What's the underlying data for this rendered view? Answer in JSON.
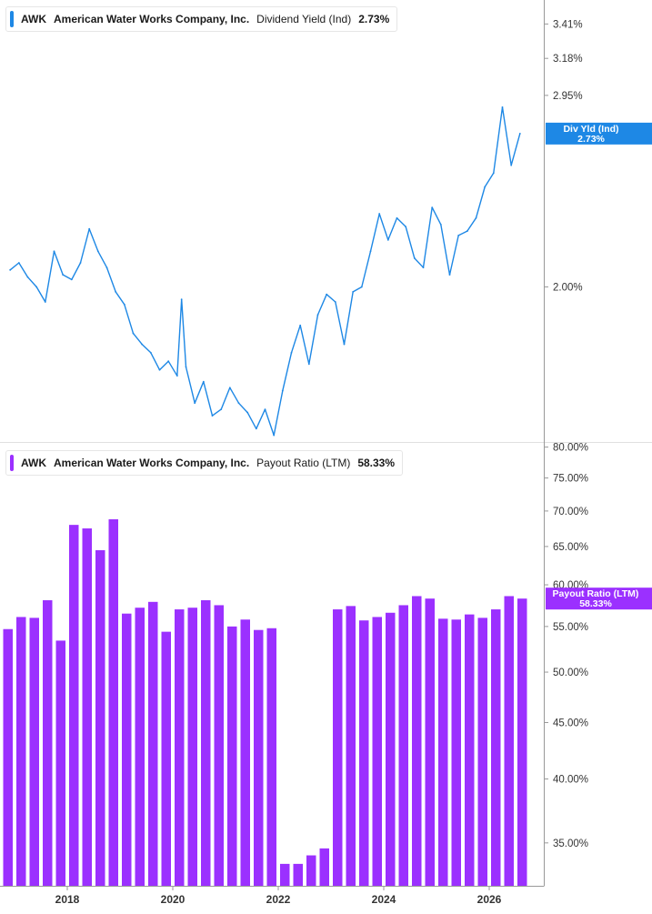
{
  "colors": {
    "yield_line": "#1e88e5",
    "payout_bar": "#9b30ff",
    "axis": "#999999"
  },
  "legend_top": {
    "ticker": "AWK",
    "company": "American Water Works Company, Inc.",
    "metric": "Dividend Yield (Ind)",
    "value": "2.73%"
  },
  "legend_bottom": {
    "ticker": "AWK",
    "company": "American Water Works Company, Inc.",
    "metric": "Payout Ratio (LTM)",
    "value": "58.33%"
  },
  "x_labels": [
    "2018",
    "2020",
    "2022",
    "2024",
    "2026"
  ],
  "chart_data": [
    {
      "type": "line",
      "scale": "log",
      "series": [
        {
          "name": "Div Yld (Ind)",
          "last_label": "2.73%",
          "x": [
            "2016-12",
            "2017-02",
            "2017-04",
            "2017-06",
            "2017-08",
            "2017-10",
            "2017-12",
            "2018-02",
            "2018-04",
            "2018-06",
            "2018-08",
            "2018-10",
            "2018-12",
            "2019-02",
            "2019-04",
            "2019-06",
            "2019-08",
            "2019-10",
            "2019-12",
            "2020-02",
            "2020-03",
            "2020-04",
            "2020-06",
            "2020-08",
            "2020-10",
            "2020-12",
            "2021-02",
            "2021-04",
            "2021-06",
            "2021-08",
            "2021-10",
            "2021-12",
            "2022-02",
            "2022-04",
            "2022-06",
            "2022-08",
            "2022-10",
            "2022-12",
            "2023-02",
            "2023-04",
            "2023-06",
            "2023-08",
            "2023-10",
            "2023-12",
            "2024-02",
            "2024-04",
            "2024-06",
            "2024-08",
            "2024-10",
            "2024-12",
            "2025-02",
            "2025-04",
            "2025-06",
            "2025-08",
            "2025-10",
            "2025-12",
            "2026-02",
            "2026-04",
            "2026-06",
            "2026-08"
          ],
          "values": [
            2.07,
            2.1,
            2.04,
            2.0,
            1.94,
            2.15,
            2.05,
            2.03,
            2.1,
            2.25,
            2.15,
            2.08,
            1.98,
            1.93,
            1.82,
            1.78,
            1.75,
            1.69,
            1.72,
            1.67,
            1.95,
            1.7,
            1.58,
            1.65,
            1.54,
            1.56,
            1.63,
            1.58,
            1.55,
            1.5,
            1.56,
            1.48,
            1.62,
            1.75,
            1.85,
            1.71,
            1.89,
            1.97,
            1.94,
            1.78,
            1.98,
            2.0,
            2.15,
            2.32,
            2.2,
            2.3,
            2.26,
            2.12,
            2.08,
            2.35,
            2.27,
            2.05,
            2.22,
            2.24,
            2.3,
            2.45,
            2.52,
            2.88,
            2.56,
            2.73
          ],
          "ylim": [
            1.46,
            3.58
          ],
          "ticks": [
            "2.00%",
            "2.95%",
            "3.18%",
            "3.41%"
          ]
        }
      ]
    },
    {
      "type": "bar",
      "scale": "log",
      "series": [
        {
          "name": "Payout Ratio (LTM)",
          "last_label": "58.33%",
          "x": [
            "2016-Q4",
            "2017-Q1",
            "2017-Q2",
            "2017-Q3",
            "2017-Q4",
            "2018-Q1",
            "2018-Q2",
            "2018-Q3",
            "2018-Q4",
            "2019-Q1",
            "2019-Q2",
            "2019-Q3",
            "2019-Q4",
            "2020-Q1",
            "2020-Q2",
            "2020-Q3",
            "2020-Q4",
            "2021-Q1",
            "2021-Q2",
            "2021-Q3",
            "2021-Q4",
            "2022-Q1",
            "2022-Q2",
            "2022-Q3",
            "2022-Q4",
            "2023-Q1",
            "2023-Q2",
            "2023-Q3",
            "2023-Q4",
            "2024-Q1",
            "2024-Q2",
            "2024-Q3",
            "2024-Q4",
            "2025-Q1",
            "2025-Q2",
            "2025-Q3",
            "2025-Q4",
            "2026-Q1",
            "2026-Q2",
            "2026-Q3"
          ],
          "values": [
            54.7,
            56.1,
            56.0,
            58.1,
            53.4,
            68.0,
            67.5,
            64.5,
            68.8,
            56.5,
            57.2,
            57.9,
            54.4,
            57.0,
            57.2,
            58.1,
            57.5,
            55.0,
            55.8,
            54.6,
            54.8,
            33.5,
            33.5,
            34.1,
            34.6,
            57.0,
            57.4,
            55.7,
            56.1,
            56.6,
            57.5,
            58.6,
            58.3,
            55.9,
            55.8,
            56.4,
            56.0,
            57.0,
            58.6,
            58.3
          ],
          "ylim": [
            32.0,
            80.7
          ],
          "ticks": [
            "35.00%",
            "40.00%",
            "45.00%",
            "50.00%",
            "55.00%",
            "60.00%",
            "65.00%",
            "70.00%",
            "75.00%",
            "80.00%"
          ]
        }
      ]
    }
  ]
}
